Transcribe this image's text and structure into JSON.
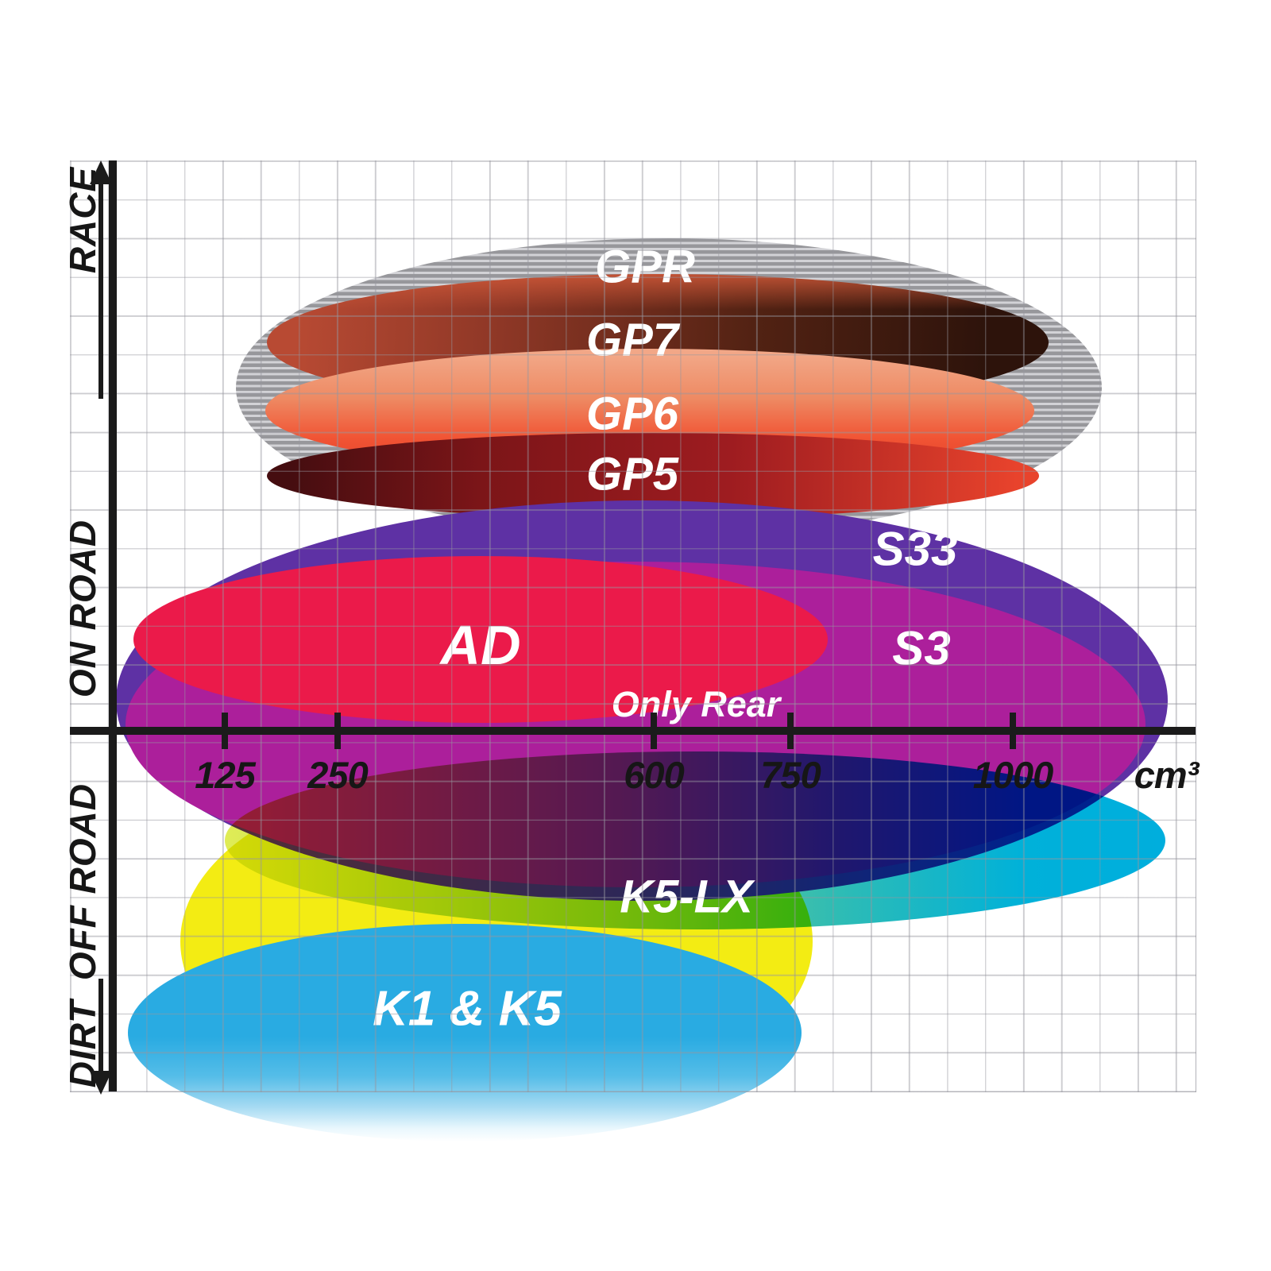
{
  "chart_data": {
    "type": "ellipse-zone-map",
    "description": "Brake pad compound application zones plotted over engine displacement (x) and riding discipline (y)",
    "x_axis": {
      "unit_label": "cm³",
      "tick_labels": [
        "125",
        "250",
        "600",
        "750",
        "1000"
      ],
      "tick_values": [
        125,
        250,
        600,
        750,
        1000
      ],
      "scale": "linear",
      "range_cc": [
        0,
        1200
      ],
      "grid": true
    },
    "y_axis": {
      "zone_labels_top_to_bottom": [
        "RACE",
        "ON ROAD",
        "OFF ROAD",
        "DIRT"
      ],
      "arrow_top": "up",
      "arrow_bottom": "down"
    },
    "series": [
      {
        "label": "GPR",
        "zone": "RACE",
        "cc_min": 140,
        "cc_max": 1100,
        "color": "#97979b",
        "fill_style": "gray horizontal-stripe hatch"
      },
      {
        "label": "GP7",
        "zone": "RACE",
        "cc_min": 170,
        "cc_max": 1040,
        "color": "#8e3726",
        "fill_style": "red-brown to dark-brown gradient"
      },
      {
        "label": "GP6",
        "zone": "RACE",
        "cc_min": 170,
        "cc_max": 1025,
        "color": "#ee8a63",
        "fill_style": "salmon to orange-red gradient"
      },
      {
        "label": "GP5",
        "zone": "RACE / ON ROAD boundary",
        "cc_min": 172,
        "cc_max": 1030,
        "color": "#9e1c20",
        "fill_style": "dark maroon to bright red gradient"
      },
      {
        "label": "S33",
        "zone": "ON ROAD",
        "cc_min": 5,
        "cc_max": 1170,
        "color": "#5e31a4",
        "fill_style": "solid purple"
      },
      {
        "label": "S3",
        "zone": "ON ROAD / OFF ROAD",
        "cc_min": 15,
        "cc_max": 1145,
        "color": "#ac1f9b",
        "fill_style": "solid magenta"
      },
      {
        "label": "AD",
        "zone": "ON ROAD",
        "cc_min": 25,
        "cc_max": 790,
        "color": "#eb1a4a",
        "fill_style": "solid crimson",
        "note": "Only Rear"
      },
      {
        "label": "",
        "zone": "OFF ROAD",
        "cc_min": 80,
        "cc_max": 785,
        "color": "#f3ec13",
        "fill_style": "solid yellow (unlabeled zone)"
      },
      {
        "label": "K5-LX",
        "zone": "OFF ROAD",
        "cc_min": 125,
        "cc_max": 1170,
        "color": "#7cc987",
        "fill_style": "yellow-green to cyan gradient, multiplies with zones above"
      },
      {
        "label": "K1 & K5",
        "zone": "DIRT",
        "cc_min": 20,
        "cc_max": 765,
        "color": "#29abe2",
        "fill_style": "sky blue fading to white at bottom"
      }
    ],
    "annotations": [
      {
        "text": "Only Rear",
        "color": "#ffffff",
        "attached_to": "AD"
      }
    ],
    "colors": {
      "axis": "#1b1b1b",
      "grid_line": "#c6c6ca",
      "label_text_on_fills": "#ffffff",
      "axis_text": "#161616"
    }
  }
}
